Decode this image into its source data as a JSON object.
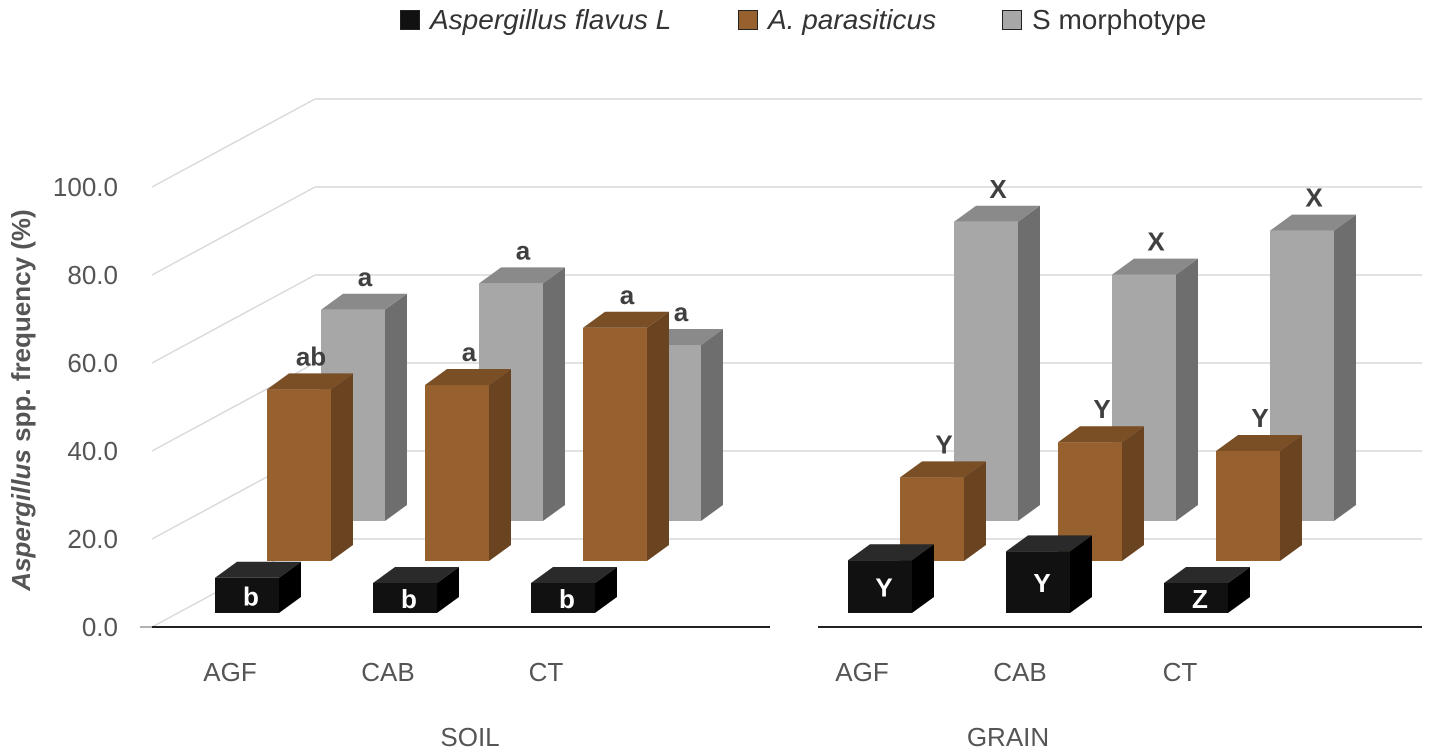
{
  "chart_data": {
    "type": "bar",
    "style": "3d-clustered-column",
    "ylabel_italic": "Aspergillus",
    "ylabel_rest": " spp. frequency (%)",
    "yticks": [
      "0.0",
      "20.0",
      "40.0",
      "60.0",
      "80.0",
      "100.0"
    ],
    "ylim": [
      0,
      100
    ],
    "legend_position": "top-center",
    "series": [
      {
        "key": "flavus",
        "name": "Aspergillus flavus L",
        "italic": true,
        "color": "#111111",
        "side": "#000000",
        "top": "#2a2a2a"
      },
      {
        "key": "parasiticus",
        "name": "A. parasiticus",
        "italic": true,
        "color": "#96612f",
        "side": "#6a4420",
        "top": "#7a4f26"
      },
      {
        "key": "smorph",
        "name": "S morphotype",
        "italic": false,
        "color": "#a7a7a7",
        "side": "#6e6e6e",
        "top": "#8a8a8a"
      }
    ],
    "groups": [
      {
        "name": "SOIL",
        "categories": [
          "AGF",
          "CAB",
          "CT"
        ],
        "values": {
          "flavus": [
            8,
            3,
            4
          ],
          "parasiticus": [
            39,
            40,
            53
          ],
          "smorph": [
            48,
            54,
            40
          ]
        },
        "labels": {
          "flavus": [
            "b",
            "b",
            "b"
          ],
          "parasiticus": [
            "ab",
            "a",
            "a"
          ],
          "smorph": [
            "a",
            "a",
            "a"
          ]
        }
      },
      {
        "name": "GRAIN",
        "categories": [
          "AGF",
          "CAB",
          "CT"
        ],
        "values": {
          "flavus": [
            12,
            14,
            5
          ],
          "parasiticus": [
            19,
            27,
            25
          ],
          "smorph": [
            68,
            56,
            66
          ]
        },
        "labels": {
          "flavus": [
            "Y",
            "Y",
            "Z"
          ],
          "parasiticus": [
            "Y",
            "Y",
            "Y"
          ],
          "smorph": [
            "X",
            "X",
            "X"
          ]
        }
      }
    ]
  }
}
